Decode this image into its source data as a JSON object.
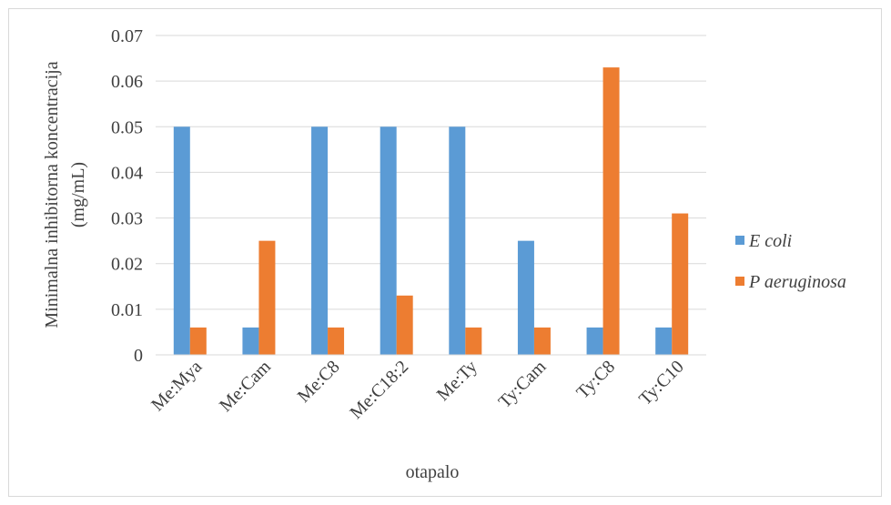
{
  "chart_data": {
    "type": "bar",
    "title": "",
    "xlabel": "otapalo",
    "ylabel": "Minimalna inhibitorna koncentracija (mg/mL)",
    "ylabel_lines": [
      "Minimalna inhibitorna koncentracija",
      "(mg/mL)"
    ],
    "categories": [
      "Me:Mya",
      "Me:Cam",
      "Me:C8",
      "Me:C18:2",
      "Me:Ty",
      "Ty:Cam",
      "Ty:C8",
      "Ty:C10"
    ],
    "series": [
      {
        "name": "E coli",
        "color": "#5b9bd5",
        "values": [
          0.05,
          0.006,
          0.05,
          0.05,
          0.05,
          0.025,
          0.006,
          0.006
        ]
      },
      {
        "name": "P aeruginosa",
        "color": "#ed7d31",
        "values": [
          0.006,
          0.025,
          0.006,
          0.013,
          0.006,
          0.006,
          0.063,
          0.031
        ]
      }
    ],
    "ylim": [
      0,
      0.07
    ],
    "yticks": [
      "0",
      "0.01",
      "0.02",
      "0.03",
      "0.04",
      "0.05",
      "0.06",
      "0.07"
    ],
    "grid": true,
    "legend_position": "right"
  }
}
